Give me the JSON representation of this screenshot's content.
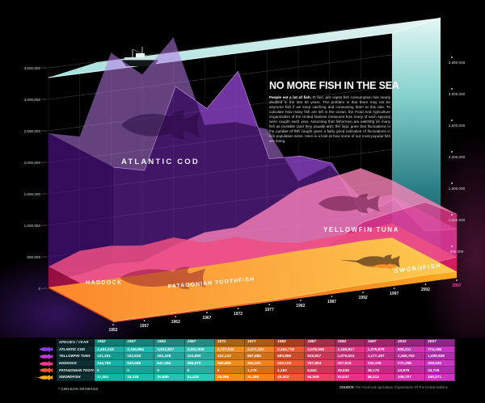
{
  "header": {
    "title": "NO MORE FISH IN THE SEA",
    "intro_lead": "People eat a lot of fish.",
    "intro_rest": " In fact, per capita fish consumption has nearly doubled in the last 50 years. The problem is that there may not be anymore fish if we keep catching and consuming them at this rate. To calculate how many fish are left in the ocean, the Food And Agriculture Organization of the United Nations measures how many of each species were caught each year. Assuming that fishermen are catching as many fish as possible (and they usually are), the logic goes that fluctuations in the number of fish caught gives a fairly good indication of fluctuations in fish population sizes. Here is a look at how some of our most popular fish are doing."
  },
  "axis": {
    "left_ticks": [
      "3,500,000",
      "3,000,000",
      "2,500,000",
      "2,000,000",
      "1,500,000",
      "1,000,000",
      "500,000",
      "0"
    ],
    "right_ticks": [
      "3,500,000",
      "3,000,000",
      "2,500,000",
      "2,000,000",
      "1,500,000",
      "1,000,000",
      "500,000"
    ],
    "year_accent_color": "#ff3fae"
  },
  "chart_data": {
    "type": "area",
    "stacked": false,
    "projection": "3d-ribbon",
    "title": "NO MORE FISH IN THE SEA",
    "x": [
      "1952",
      "1957",
      "1962",
      "1967",
      "1972",
      "1977",
      "1982",
      "1987",
      "1992",
      "1997",
      "2002",
      "2007"
    ],
    "y_ticks_labels": [
      "0",
      "500,000",
      "1,000,000",
      "1,500,000",
      "2,000,000",
      "2,500,000",
      "3,000,000",
      "3,500,000"
    ],
    "ylim": [
      0,
      3500000
    ],
    "grid": true,
    "series": [
      {
        "name": "ATLANTIC COD",
        "values": [
          2461215,
          2345954,
          3612837,
          3201009,
          3727530,
          2271320,
          2254718,
          2076586,
          1185817,
          1375879,
          805211,
          774188
        ],
        "color": "#7e2bc4",
        "color_top": "#b478e6",
        "color_side": "#4e1486",
        "edge": "#cf9bef",
        "a_front": 0.52,
        "a_top": 0.55
      },
      {
        "name": "YELLOWFIN TUNA",
        "values": [
          121261,
          152818,
          261428,
          233880,
          422133,
          567886,
          583889,
          815827,
          1076524,
          1177487,
          1266704,
          1009828
        ],
        "color": "#ff3e96",
        "color_top": "#ff85bb",
        "color_side": "#c2256e",
        "edge": "#ffa3cb",
        "a_front": 0.72,
        "a_top": 0.78
      },
      {
        "name": "HADDOCK",
        "values": [
          344755,
          530688,
          547494,
          485870,
          550868,
          404302,
          433103,
          287894,
          207615,
          234105,
          270298,
          329330
        ],
        "color": "#d31757",
        "color_top": "#ee4f82",
        "color_side": "#97103e",
        "edge": "#f97fa6",
        "a_front": 0.82,
        "a_top": 0.85
      },
      {
        "name": "PATAGONIAN TOOTHFISH",
        "values": [
          0,
          0,
          0,
          0,
          0,
          1178,
          1193,
          5641,
          39636,
          36175,
          43876,
          34726
        ],
        "color": "#97122e",
        "color_top": "#c02048",
        "color_side": "#6d0c20",
        "edge": "#d4406a",
        "a_front": 0.9,
        "a_top": 0.9
      },
      {
        "name": "SWORDFISH",
        "values": [
          17261,
          18128,
          20889,
          24418,
          29386,
          31380,
          40302,
          64949,
          83037,
          88212,
          108707,
          100271
        ],
        "gradient": [
          "#e8471d",
          "#ffb31e"
        ],
        "gradient_top": [
          "#ff8c2a",
          "#ffd44f"
        ],
        "color_side": "#b8330f",
        "edge": "#ffd97a",
        "a_front": 0.95,
        "a_top": 0.95
      }
    ],
    "water_colors": {
      "surface_light": "#f2fffe",
      "surface_deep": "#a8e9e4",
      "wall_top": "#eafffd",
      "wall_mid": "#2e8d94",
      "wall_bottom": "#0b3a46"
    }
  },
  "table": {
    "corner": "SPECIES / YEAR",
    "years": [
      "1952",
      "1957",
      "1962",
      "1967",
      "1972",
      "1977",
      "1982",
      "1987",
      "1992",
      "1997",
      "2002",
      "2007"
    ],
    "column_colors": [
      "#17b3a6",
      "#1fb9ad",
      "#29bfb3",
      "#33c4b8",
      "#f28c1a",
      "#f4811e",
      "#ee5a30",
      "#e94066",
      "#e53487",
      "#e1329b",
      "#d633b1",
      "#ca35c4"
    ],
    "rows": [
      {
        "name": "ATLANTIC COD",
        "icon_color": "#8e3bf0",
        "sword": false,
        "values": [
          "2,461,215",
          "2,345,954",
          "3,612,837",
          "3,201,009",
          "3,727,530",
          "2,271,320",
          "2,254,718",
          "2,076,586",
          "1,185,817",
          "1,375,879",
          "805,211",
          "774,188"
        ]
      },
      {
        "name": "YELLOWFIN TUNA",
        "icon_color": "#c238d8",
        "sword": false,
        "values": [
          "121,261",
          "152,818",
          "261,428",
          "233,880",
          "422,133",
          "567,886",
          "583,889",
          "815,827",
          "1,076,524",
          "1,177,487",
          "1,266,704",
          "1,009,828"
        ]
      },
      {
        "name": "HADDOCK",
        "icon_color": "#f8399b",
        "sword": false,
        "values": [
          "344,755",
          "530,688",
          "547,494",
          "485,870",
          "550,868",
          "404,302",
          "433,103",
          "287,894",
          "207,615",
          "234,105",
          "270,298",
          "329,330"
        ]
      },
      {
        "name": "PATAGONIAN TOOTHFISH *",
        "icon_color": "#f25430",
        "sword": false,
        "values": [
          "0",
          "0",
          "0",
          "0",
          "0",
          "1,178",
          "1,193",
          "5,641",
          "39,636",
          "36,175",
          "43,876",
          "34,726"
        ]
      },
      {
        "name": "SWORDFISH",
        "icon_color": "#f8ab19",
        "sword": true,
        "values": [
          "17,261",
          "18,128",
          "20,889",
          "24,418",
          "29,386",
          "31,380",
          "40,302",
          "64,949",
          "83,037",
          "88,212",
          "108,707",
          "100,271"
        ]
      }
    ]
  },
  "footnote": {
    "text": "* CHILEAN SEABASS"
  },
  "source": {
    "label": "SOURCE",
    "text": " The Food And Agriculture Organization Of The United Nations"
  }
}
